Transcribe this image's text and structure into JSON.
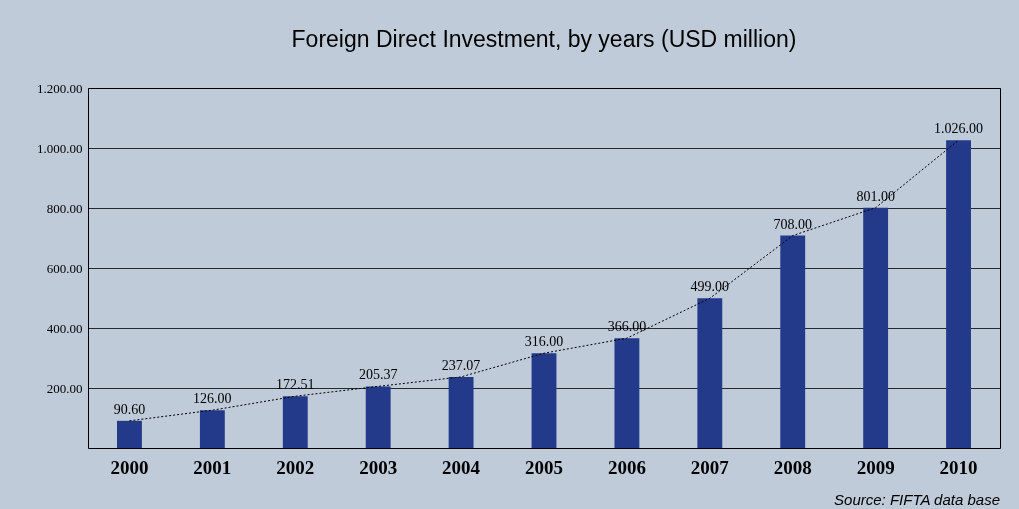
{
  "chart_data": {
    "type": "bar",
    "title": "Foreign Direct Investment, by years (USD million)",
    "categories": [
      "2000",
      "2001",
      "2002",
      "2003",
      "2004",
      "2005",
      "2006",
      "2007",
      "2008",
      "2009",
      "2010"
    ],
    "series": [
      {
        "color": "#233a8a",
        "values": [
          90.6,
          126,
          172.51,
          205.37,
          237.07,
          316,
          366,
          499,
          708,
          801,
          1026
        ],
        "value_labels": [
          "90.60",
          "126.00",
          "172.51",
          "205.37",
          "237.07",
          "316.00",
          "366.00",
          "499.00",
          "708.00",
          "801.00",
          "1.026.00"
        ]
      },
      {
        "type": "line",
        "color": "#000000",
        "line_style": "dotted",
        "marker": "none",
        "values": [
          90.6,
          126,
          172.51,
          205.37,
          237.07,
          316,
          366,
          499,
          708,
          801,
          1026
        ]
      }
    ],
    "ylim": [
      0,
      1200
    ],
    "yticks": [
      {
        "value": 200,
        "label": "200.00"
      },
      {
        "value": 400,
        "label": "400.00"
      },
      {
        "value": 600,
        "label": "600.00"
      },
      {
        "value": 800,
        "label": "800.00"
      },
      {
        "value": 1000,
        "label": "1.000.00"
      },
      {
        "value": 1200,
        "label": "1.200.00"
      }
    ],
    "grid": "y",
    "annotations": [
      "Source: FIFTA data base"
    ]
  }
}
